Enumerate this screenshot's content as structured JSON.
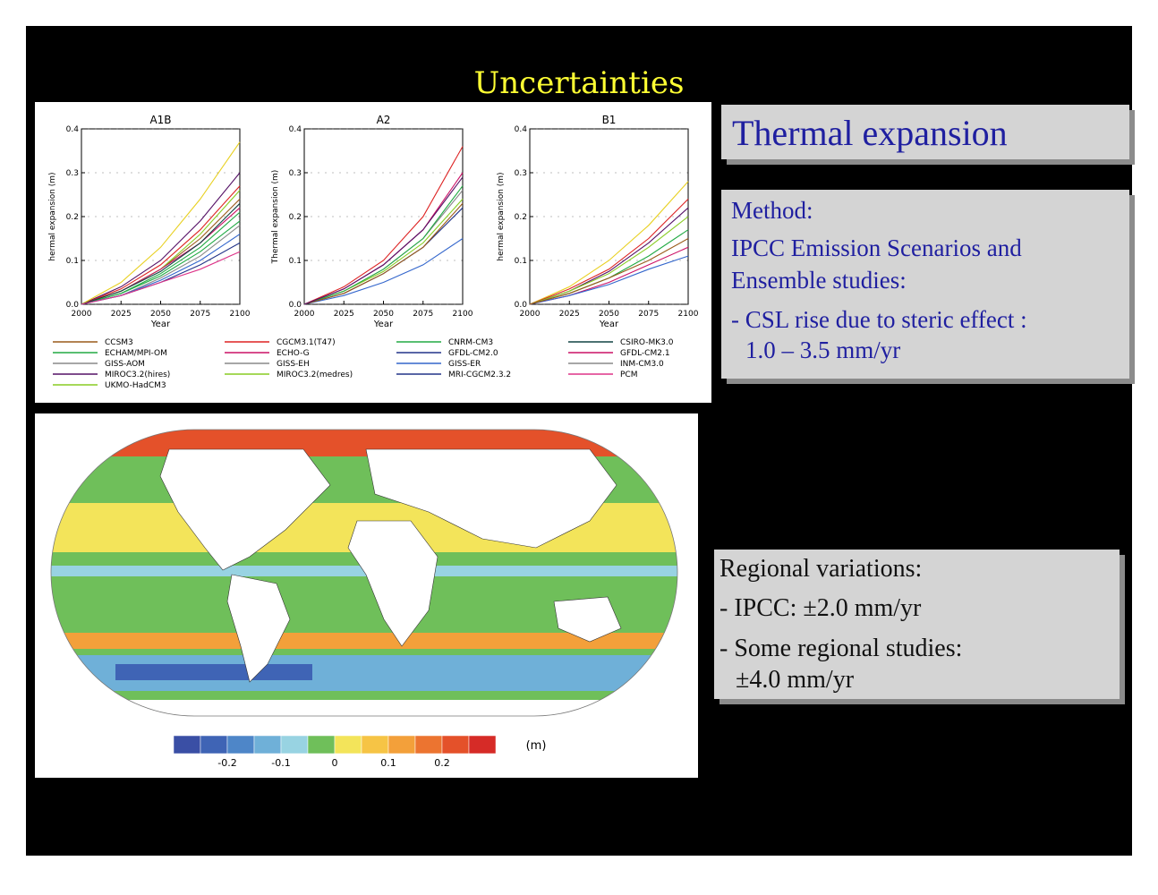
{
  "slide": {
    "title": "Uncertainties"
  },
  "thermal_box": {
    "heading": "Thermal expansion"
  },
  "method_box": {
    "method": "Method:",
    "line1": "IPCC Emission Scenarios and",
    "line2": "Ensemble studies:",
    "line3": "- CSL rise due to steric effect :",
    "line4": "1.0 – 3.5 mm/yr"
  },
  "regional_box": {
    "line1": "Regional variations:",
    "line2": "- IPCC: ±2.0  mm/yr",
    "line3": "- Some regional studies:",
    "line4": "±4.0  mm/yr"
  },
  "chart_data": [
    {
      "type": "line",
      "title": "A1B",
      "xlabel": "Year",
      "ylabel": "hermal expansion (m)",
      "x": [
        2000,
        2025,
        2050,
        2075,
        2100
      ],
      "xlim": [
        2000,
        2100
      ],
      "ylim": [
        0.0,
        0.4
      ],
      "yticks": [
        "0.0",
        "0.1",
        "0.2",
        "0.3",
        "0.4"
      ],
      "series": [
        {
          "color": "#9a5a1a",
          "values": [
            0.0,
            0.03,
            0.08,
            0.15,
            0.24
          ]
        },
        {
          "color": "#22aa44",
          "values": [
            0.0,
            0.025,
            0.07,
            0.13,
            0.21
          ]
        },
        {
          "color": "#888888",
          "values": [
            0.0,
            0.02,
            0.06,
            0.11,
            0.18
          ]
        },
        {
          "color": "#551166",
          "values": [
            0.0,
            0.04,
            0.1,
            0.19,
            0.3
          ]
        },
        {
          "color": "#88cc22",
          "values": [
            0.0,
            0.03,
            0.08,
            0.16,
            0.26
          ]
        },
        {
          "color": "#dd2222",
          "values": [
            0.0,
            0.035,
            0.09,
            0.17,
            0.27
          ]
        },
        {
          "color": "#cc1166",
          "values": [
            0.0,
            0.03,
            0.08,
            0.14,
            0.22
          ]
        },
        {
          "color": "#e8d020",
          "values": [
            0.0,
            0.05,
            0.13,
            0.24,
            0.37
          ]
        },
        {
          "color": "#22aa44",
          "values": [
            0.0,
            0.025,
            0.065,
            0.12,
            0.19
          ]
        },
        {
          "color": "#223388",
          "values": [
            0.0,
            0.02,
            0.05,
            0.09,
            0.14
          ]
        },
        {
          "color": "#3366cc",
          "values": [
            0.0,
            0.02,
            0.055,
            0.1,
            0.16
          ]
        },
        {
          "color": "#114444",
          "values": [
            0.0,
            0.03,
            0.075,
            0.14,
            0.23
          ]
        },
        {
          "color": "#dd3388",
          "values": [
            0.0,
            0.02,
            0.05,
            0.08,
            0.12
          ]
        }
      ]
    },
    {
      "type": "line",
      "title": "A2",
      "xlabel": "Year",
      "ylabel": "Thermal expansion (m)",
      "x": [
        2000,
        2025,
        2050,
        2075,
        2100
      ],
      "xlim": [
        2000,
        2100
      ],
      "ylim": [
        0.0,
        0.4
      ],
      "yticks": [
        "0.0",
        "0.1",
        "0.2",
        "0.3",
        "0.4"
      ],
      "series": [
        {
          "color": "#dd2222",
          "values": [
            0.0,
            0.04,
            0.1,
            0.2,
            0.36
          ]
        },
        {
          "color": "#cc1166",
          "values": [
            0.0,
            0.035,
            0.09,
            0.17,
            0.3
          ]
        },
        {
          "color": "#888888",
          "values": [
            0.0,
            0.03,
            0.08,
            0.15,
            0.26
          ]
        },
        {
          "color": "#88cc22",
          "values": [
            0.0,
            0.03,
            0.075,
            0.14,
            0.24
          ]
        },
        {
          "color": "#22aa44",
          "values": [
            0.0,
            0.03,
            0.08,
            0.15,
            0.27
          ]
        },
        {
          "color": "#223388",
          "values": [
            0.0,
            0.025,
            0.07,
            0.13,
            0.22
          ]
        },
        {
          "color": "#3366cc",
          "values": [
            0.0,
            0.02,
            0.05,
            0.09,
            0.15
          ]
        },
        {
          "color": "#9a5a1a",
          "values": [
            0.0,
            0.025,
            0.07,
            0.13,
            0.23
          ]
        },
        {
          "color": "#551166",
          "values": [
            0.0,
            0.035,
            0.09,
            0.17,
            0.29
          ]
        }
      ]
    },
    {
      "type": "line",
      "title": "B1",
      "xlabel": "Year",
      "ylabel": "hermal expansion (m)",
      "x": [
        2000,
        2025,
        2050,
        2075,
        2100
      ],
      "xlim": [
        2000,
        2100
      ],
      "ylim": [
        0.0,
        0.4
      ],
      "yticks": [
        "0.0",
        "0.1",
        "0.2",
        "0.3",
        "0.4"
      ],
      "series": [
        {
          "color": "#e8d020",
          "values": [
            0.0,
            0.04,
            0.1,
            0.18,
            0.28
          ]
        },
        {
          "color": "#dd2222",
          "values": [
            0.0,
            0.035,
            0.08,
            0.15,
            0.24
          ]
        },
        {
          "color": "#551166",
          "values": [
            0.0,
            0.03,
            0.075,
            0.14,
            0.22
          ]
        },
        {
          "color": "#22aa44",
          "values": [
            0.0,
            0.025,
            0.06,
            0.11,
            0.17
          ]
        },
        {
          "color": "#88cc22",
          "values": [
            0.0,
            0.03,
            0.07,
            0.13,
            0.2
          ]
        },
        {
          "color": "#cc1166",
          "values": [
            0.0,
            0.02,
            0.05,
            0.09,
            0.13
          ]
        },
        {
          "color": "#3366cc",
          "values": [
            0.0,
            0.02,
            0.045,
            0.08,
            0.11
          ]
        },
        {
          "color": "#9a5a1a",
          "values": [
            0.0,
            0.025,
            0.06,
            0.1,
            0.15
          ]
        }
      ]
    },
    {
      "type": "heatmap",
      "unit": "(m)",
      "colorbar_ticks": [
        "-0.2",
        "-0.1",
        "0",
        "0.1",
        "0.2"
      ],
      "colorbar_colors": [
        "#3a4fa5",
        "#3f64b5",
        "#4e86c8",
        "#6fb0d8",
        "#98d3e2",
        "#6fbf5a",
        "#f3e45a",
        "#f6c445",
        "#f3a03a",
        "#ec7430",
        "#e4512a",
        "#d62b27"
      ]
    }
  ],
  "legend": [
    {
      "label": "CCSM3",
      "color": "#9a5a1a"
    },
    {
      "label": "CGCM3.1(T47)",
      "color": "#dd2222"
    },
    {
      "label": "CNRM-CM3",
      "color": "#22aa44"
    },
    {
      "label": "CSIRO-MK3.0",
      "color": "#114444"
    },
    {
      "label": "ECHAM/MPI-OM",
      "color": "#22aa44"
    },
    {
      "label": "ECHO-G",
      "color": "#cc1166"
    },
    {
      "label": "GFDL-CM2.0",
      "color": "#223388"
    },
    {
      "label": "GFDL-CM2.1",
      "color": "#cc1166"
    },
    {
      "label": "GISS-AOM",
      "color": "#888888"
    },
    {
      "label": "GISS-EH",
      "color": "#888888"
    },
    {
      "label": "GISS-ER",
      "color": "#3366cc"
    },
    {
      "label": "INM-CM3.0",
      "color": "#888888"
    },
    {
      "label": "MIROC3.2(hires)",
      "color": "#551166"
    },
    {
      "label": "MIROC3.2(medres)",
      "color": "#88cc22"
    },
    {
      "label": "MRI-CGCM2.3.2",
      "color": "#223388"
    },
    {
      "label": "PCM",
      "color": "#dd3388"
    },
    {
      "label": "UKMO-HadCM3",
      "color": "#88cc22"
    }
  ]
}
